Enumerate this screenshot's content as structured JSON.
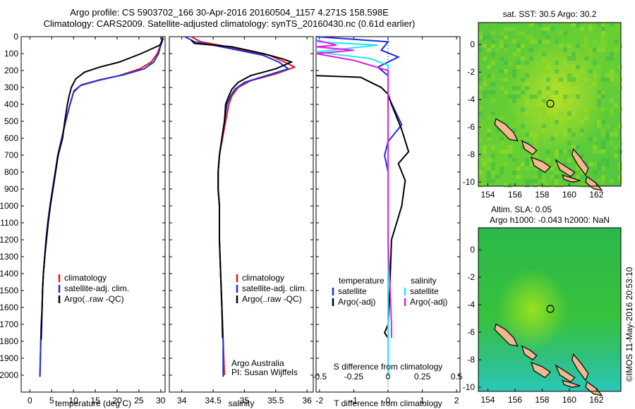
{
  "header": {
    "line1": "Argo profile: CS 5903702_166 30-Apr-2016 20160504_1157 4.271S 158.598E",
    "line2": "Climatology: CARS2009. Satellite-adjusted climatology: synTS_20160430.nc (0.61d earlier)"
  },
  "credit": "©IMOS 11-May-2016 20:53:10",
  "colors": {
    "climatology": "#e8141c",
    "satellite": "#1a2fe0",
    "argo": "#000000",
    "satellite_s": "#20e8f0",
    "argo_s": "#e020e0"
  },
  "chart_data": [
    {
      "type": "line",
      "xlabel": "temperature (deg C)",
      "xlim": [
        -2,
        31
      ],
      "xticks": [
        0,
        5,
        10,
        15,
        20,
        25,
        30
      ],
      "ylim": [
        2100,
        0
      ],
      "yticks": [
        0,
        100,
        200,
        300,
        400,
        500,
        600,
        700,
        800,
        900,
        1000,
        1100,
        1200,
        1300,
        1400,
        1500,
        1600,
        1700,
        1800,
        1900,
        2000
      ],
      "legend": [
        "climatology",
        "satellite-adj. clim.",
        "Argo(..raw -QC)"
      ],
      "legend_loc": "center-right",
      "series": [
        {
          "name": "climatology",
          "color": "#e8141c",
          "points": [
            [
              30.3,
              0
            ],
            [
              30.2,
              30
            ],
            [
              29.8,
              60
            ],
            [
              29.2,
              100
            ],
            [
              27.8,
              150
            ],
            [
              25.2,
              190
            ],
            [
              20.5,
              230
            ],
            [
              15.5,
              260
            ],
            [
              11.5,
              290
            ],
            [
              10,
              330
            ],
            [
              9.2,
              400
            ],
            [
              8.2,
              500
            ],
            [
              7.3,
              600
            ],
            [
              6.4,
              700
            ],
            [
              5.8,
              800
            ],
            [
              5.2,
              900
            ],
            [
              4.6,
              1000
            ],
            [
              4.1,
              1100
            ],
            [
              3.7,
              1200
            ],
            [
              3.4,
              1300
            ],
            [
              3.1,
              1400
            ],
            [
              2.9,
              1500
            ],
            [
              2.8,
              1600
            ],
            [
              2.6,
              1700
            ],
            [
              2.5,
              1800
            ],
            [
              2.4,
              1900
            ],
            [
              2.3,
              2000
            ]
          ]
        },
        {
          "name": "satellite-adj. clim.",
          "color": "#1a2fe0",
          "points": [
            [
              30.5,
              0
            ],
            [
              30.3,
              30
            ],
            [
              29.9,
              60
            ],
            [
              29.5,
              100
            ],
            [
              28.4,
              150
            ],
            [
              26.2,
              190
            ],
            [
              21.5,
              225
            ],
            [
              16,
              255
            ],
            [
              11.8,
              285
            ],
            [
              10.1,
              320
            ],
            [
              9.2,
              400
            ],
            [
              8.2,
              500
            ],
            [
              7.3,
              600
            ],
            [
              6.4,
              700
            ],
            [
              5.8,
              800
            ],
            [
              5.2,
              900
            ],
            [
              4.6,
              1000
            ],
            [
              4.1,
              1100
            ],
            [
              3.7,
              1200
            ],
            [
              3.4,
              1300
            ],
            [
              3.1,
              1400
            ],
            [
              2.9,
              1500
            ],
            [
              2.8,
              1600
            ],
            [
              2.6,
              1700
            ],
            [
              2.5,
              1800
            ],
            [
              2.4,
              1900
            ],
            [
              2.3,
              2010
            ]
          ]
        },
        {
          "name": "Argo(..raw -QC)",
          "color": "#000000",
          "points": [
            [
              30.6,
              10
            ],
            [
              29.8,
              50
            ],
            [
              25.5,
              100
            ],
            [
              20.5,
              150
            ],
            [
              16,
              180
            ],
            [
              12.5,
              210
            ],
            [
              10.5,
              250
            ],
            [
              9.5,
              300
            ],
            [
              9,
              350
            ],
            [
              8.6,
              400
            ],
            [
              8,
              500
            ],
            [
              7.5,
              600
            ],
            [
              6.5,
              700
            ],
            [
              5.9,
              800
            ],
            [
              5.3,
              900
            ],
            [
              4.7,
              1000
            ],
            [
              4.2,
              1100
            ],
            [
              3.8,
              1200
            ],
            [
              3.4,
              1300
            ],
            [
              3.1,
              1400
            ],
            [
              2.9,
              1500
            ],
            [
              2.8,
              1600
            ],
            [
              2.7,
              1700
            ],
            [
              2.6,
              1790
            ]
          ]
        }
      ]
    },
    {
      "type": "line",
      "xlabel": "salinity",
      "xlim": [
        33.8,
        36.1
      ],
      "xticks": [
        34,
        34.5,
        35,
        35.5,
        36
      ],
      "xtick_labels": [
        "34",
        "34.5",
        "35",
        "35.5",
        "36"
      ],
      "ylim": [
        2100,
        0
      ],
      "legend": [
        "climatology",
        "satellite-adj. clim.",
        "Argo(..raw -QC)"
      ],
      "legend_loc": "center-right",
      "annotation": [
        "Argo Australia",
        "PI: Susan Wijffels"
      ],
      "series": [
        {
          "name": "climatology",
          "color": "#e8141c",
          "points": [
            [
              34.15,
              0
            ],
            [
              34.3,
              30
            ],
            [
              34.6,
              50
            ],
            [
              35,
              80
            ],
            [
              35.4,
              110
            ],
            [
              35.7,
              160
            ],
            [
              35.8,
              180
            ],
            [
              35.5,
              220
            ],
            [
              35.1,
              260
            ],
            [
              34.9,
              300
            ],
            [
              34.8,
              350
            ],
            [
              34.75,
              400
            ],
            [
              34.7,
              500
            ],
            [
              34.65,
              600
            ],
            [
              34.6,
              700
            ],
            [
              34.58,
              800
            ],
            [
              34.58,
              900
            ],
            [
              34.6,
              1000
            ],
            [
              34.6,
              1200
            ],
            [
              34.62,
              1400
            ],
            [
              34.64,
              1600
            ],
            [
              34.66,
              1800
            ],
            [
              34.68,
              2000
            ]
          ]
        },
        {
          "name": "satellite-adj. clim.",
          "color": "#1a2fe0",
          "points": [
            [
              34.05,
              0
            ],
            [
              34.2,
              30
            ],
            [
              34.5,
              50
            ],
            [
              34.9,
              80
            ],
            [
              35.3,
              110
            ],
            [
              35.55,
              150
            ],
            [
              35.7,
              190
            ],
            [
              35.35,
              230
            ],
            [
              35,
              270
            ],
            [
              34.85,
              310
            ],
            [
              34.78,
              350
            ],
            [
              34.72,
              400
            ],
            [
              34.68,
              500
            ],
            [
              34.64,
              600
            ],
            [
              34.6,
              700
            ],
            [
              34.58,
              800
            ],
            [
              34.58,
              900
            ],
            [
              34.6,
              1000
            ],
            [
              34.6,
              1200
            ],
            [
              34.62,
              1400
            ],
            [
              34.64,
              1600
            ],
            [
              34.66,
              1800
            ],
            [
              34.66,
              2010
            ]
          ]
        },
        {
          "name": "Argo(..raw -QC)",
          "color": "#000000",
          "points": [
            [
              34.15,
              20
            ],
            [
              34.2,
              40
            ],
            [
              34.8,
              60
            ],
            [
              35.3,
              100
            ],
            [
              35.6,
              130
            ],
            [
              35.75,
              150
            ],
            [
              35.5,
              190
            ],
            [
              35.1,
              230
            ],
            [
              34.9,
              270
            ],
            [
              34.8,
              310
            ],
            [
              34.75,
              350
            ],
            [
              34.7,
              400
            ],
            [
              34.68,
              500
            ],
            [
              34.64,
              600
            ],
            [
              34.6,
              700
            ],
            [
              34.58,
              800
            ],
            [
              34.58,
              900
            ],
            [
              34.6,
              1000
            ],
            [
              34.6,
              1200
            ],
            [
              34.62,
              1400
            ],
            [
              34.64,
              1600
            ],
            [
              34.65,
              1780
            ]
          ]
        }
      ]
    },
    {
      "type": "line",
      "xlabel": "T difference from climatology",
      "xlim": [
        -2.1,
        2.1
      ],
      "xticks": [
        -2,
        -1,
        0,
        1,
        2
      ],
      "top_label": "S difference from climatology",
      "top_ticks": [
        "-0.5",
        "-0.25",
        "0",
        "0.25",
        "0.5"
      ],
      "ylim": [
        2100,
        0
      ],
      "legend_t": {
        "title": "temperature",
        "items": [
          "satellite",
          "Argo(-adj)"
        ]
      },
      "legend_s": {
        "title": "salinity",
        "items": [
          "satellite",
          "Argo(-adj)"
        ]
      },
      "series": [
        {
          "name": "temperature satellite",
          "color": "#1a2fe0",
          "points": [
            [
              -2.1,
              0
            ],
            [
              0,
              30
            ],
            [
              -0.2,
              80
            ],
            [
              0.3,
              120
            ],
            [
              -0.3,
              180
            ],
            [
              0,
              230
            ],
            [
              0,
              350
            ],
            [
              0.4,
              520
            ],
            [
              0,
              620
            ],
            [
              -0.1,
              700
            ],
            [
              0,
              800
            ],
            [
              0,
              1000
            ],
            [
              0,
              2000
            ]
          ]
        },
        {
          "name": "temperature Argo(-adj)",
          "color": "#000000",
          "points": [
            [
              -2.1,
              230
            ],
            [
              -0.8,
              240
            ],
            [
              -0.5,
              270
            ],
            [
              -0.2,
              300
            ],
            [
              0,
              340
            ],
            [
              0.1,
              400
            ],
            [
              0.4,
              550
            ],
            [
              0.6,
              680
            ],
            [
              0.3,
              750
            ],
            [
              0.5,
              850
            ],
            [
              0.4,
              1000
            ],
            [
              0.1,
              1200
            ],
            [
              0.05,
              1500
            ],
            [
              0,
              1700
            ],
            [
              -0.1,
              1750
            ],
            [
              0,
              1780
            ]
          ]
        },
        {
          "name": "salinity satellite",
          "color": "#20e8f0",
          "points": [
            [
              -2.1,
              30
            ],
            [
              -0.3,
              50
            ],
            [
              -2.1,
              90
            ],
            [
              -0.5,
              130
            ],
            [
              0,
              170
            ],
            [
              0,
              300
            ],
            [
              0,
              400
            ],
            [
              0,
              800
            ],
            [
              0,
              1200
            ],
            [
              0,
              2000
            ]
          ]
        },
        {
          "name": "salinity Argo(-adj)",
          "color": "#e020e0",
          "points": [
            [
              -2.1,
              20
            ],
            [
              -1.5,
              50
            ],
            [
              -2.1,
              60
            ],
            [
              -1,
              80
            ],
            [
              -2.1,
              100
            ],
            [
              -1,
              140
            ],
            [
              0,
              200
            ],
            [
              0,
              350
            ],
            [
              0,
              800
            ],
            [
              0,
              1200
            ],
            [
              0.1,
              1700
            ],
            [
              0.1,
              1780
            ]
          ]
        }
      ]
    },
    {
      "type": "heatmap",
      "title": "sat. SST: 30.5 Argo: 30.2",
      "xlim": [
        153.3,
        163.8
      ],
      "xticks": [
        154,
        156,
        158,
        160,
        162
      ],
      "ylim": [
        -10.3,
        1.6
      ],
      "yticks": [
        0,
        -2,
        -4,
        -6,
        -8,
        -10
      ],
      "profile_location": [
        158.6,
        -4.3
      ]
    },
    {
      "type": "heatmap",
      "title_lines": [
        "Altim. SLA: 0.05",
        "Argo h1000: -0.043 h2000: NaN"
      ],
      "xlim": [
        153.3,
        163.8
      ],
      "xticks": [
        154,
        156,
        158,
        160,
        162
      ],
      "ylim": [
        -10.3,
        1.6
      ],
      "yticks": [
        0,
        -2,
        -4,
        -6,
        -8,
        -10
      ],
      "profile_location": [
        158.6,
        -4.3
      ]
    }
  ]
}
